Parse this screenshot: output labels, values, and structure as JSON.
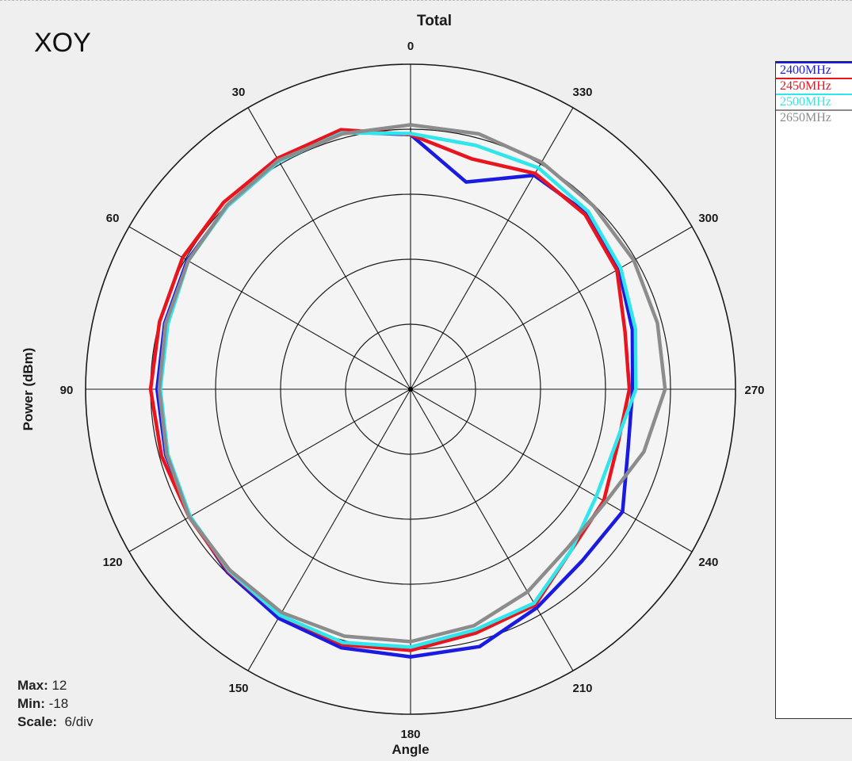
{
  "panel_label": "XOY",
  "stats": {
    "max_label": "Max:",
    "max_value": "12",
    "min_label": "Min:",
    "min_value": "-18",
    "scale_label": "Scale:",
    "scale_value": "6/div"
  },
  "colors": {
    "grid": "#1a1a1a",
    "ring_fill_outer": "#f4f4f4",
    "series_2400": "#1a1ae0",
    "series_2450": "#e8151f",
    "series_2500": "#30e6ec",
    "series_2650": "#8c8c8c"
  },
  "chart_data": {
    "type": "polar",
    "title": "Total",
    "xlabel": "Angle",
    "ylabel": "Power  (dBm)",
    "angle_ticks": [
      "0",
      "30",
      "60",
      "90",
      "120",
      "150",
      "180",
      "210",
      "240",
      "270",
      "300",
      "330"
    ],
    "angle_direction": "counter-clockwise from top (0 at top, 90 at left)",
    "radial_range": [
      -18,
      12
    ],
    "radial_step": 6,
    "grid": true,
    "legend_position": "right",
    "series": [
      {
        "name": "2400MHz",
        "color_key": "series_2400",
        "angles": [
          0,
          15,
          30,
          45,
          60,
          75,
          90,
          105,
          120,
          135,
          150,
          165,
          180,
          195,
          210,
          225,
          240,
          255,
          270,
          285,
          300,
          315,
          330,
          345,
          360
        ],
        "values": [
          5.5,
          6.6,
          6.3,
          5.9,
          5.8,
          5.5,
          5.4,
          5.4,
          5.5,
          5.9,
          6.4,
          6.7,
          6.7,
          6.6,
          5.3,
          4.4,
          4.6,
          2.8,
          2.5,
          3.2,
          4.2,
          5.0,
          4.8,
          1.8,
          5.5
        ]
      },
      {
        "name": "2450MHz",
        "color_key": "series_2450",
        "angles": [
          0,
          15,
          30,
          45,
          60,
          75,
          90,
          105,
          120,
          135,
          150,
          165,
          180,
          195,
          210,
          225,
          240,
          255,
          270,
          285,
          300,
          315,
          330,
          345,
          360
        ],
        "values": [
          5.5,
          6.8,
          6.6,
          6.4,
          6.3,
          6.0,
          6.0,
          5.8,
          5.6,
          5.8,
          6.1,
          6.4,
          6.1,
          5.3,
          5.0,
          3.0,
          2.6,
          1.8,
          2.2,
          2.5,
          4.0,
          4.8,
          5.0,
          4.0,
          5.5
        ]
      },
      {
        "name": "2500MHz",
        "color_key": "series_2500",
        "angles": [
          0,
          15,
          30,
          45,
          60,
          75,
          90,
          105,
          120,
          135,
          150,
          165,
          180,
          195,
          210,
          225,
          240,
          255,
          270,
          285,
          300,
          315,
          330,
          345,
          360
        ],
        "values": [
          5.6,
          6.5,
          6.3,
          5.9,
          5.7,
          5.2,
          5.1,
          5.2,
          5.5,
          5.7,
          6.1,
          6.2,
          5.8,
          5.0,
          4.8,
          3.0,
          1.8,
          1.6,
          2.8,
          3.5,
          4.4,
          5.2,
          5.6,
          5.3,
          5.6
        ]
      },
      {
        "name": "2650MHz",
        "color_key": "series_2650",
        "angles": [
          0,
          15,
          30,
          45,
          60,
          75,
          90,
          105,
          120,
          135,
          150,
          165,
          180,
          195,
          210,
          225,
          240,
          255,
          270,
          285,
          300,
          315,
          330,
          345,
          360
        ],
        "values": [
          6.4,
          6.4,
          6.4,
          6.0,
          5.7,
          5.4,
          5.2,
          5.3,
          5.6,
          5.6,
          5.8,
          5.6,
          5.3,
          4.6,
          3.6,
          2.6,
          2.8,
          4.3,
          5.5,
          5.6,
          5.8,
          5.9,
          6.2,
          6.4,
          6.4
        ]
      }
    ]
  }
}
